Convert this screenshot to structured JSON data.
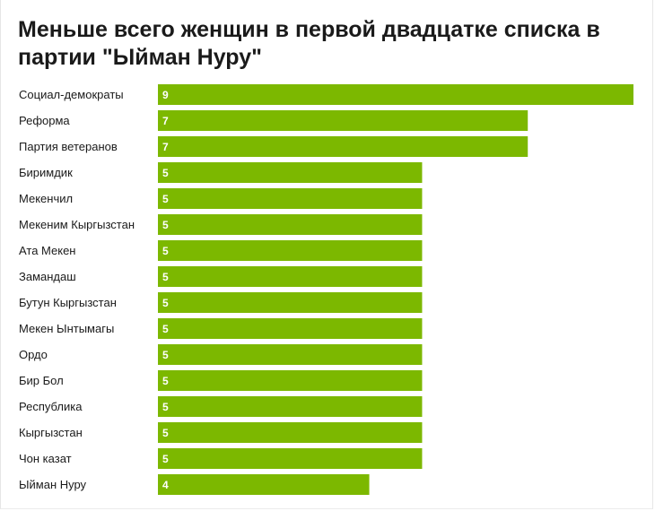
{
  "chart_data": {
    "type": "bar",
    "orientation": "horizontal",
    "title": "Меньше всего женщин в первой двадцатке списка в партии \"Ыйман Нуру\"",
    "categories": [
      "Социал-демократы",
      "Реформа",
      "Партия ветеранов",
      "Биримдик",
      "Мекенчил",
      "Мекеним Кыргызстан",
      "Ата Мекен",
      "Замандаш",
      "Бутун Кыргызстан",
      "Мекен Ынтымагы",
      "Ордо",
      "Бир Бол",
      "Республика",
      "Кыргызстан",
      "Чон казат",
      "Ыйман Нуру"
    ],
    "values": [
      9,
      7,
      7,
      5,
      5,
      5,
      5,
      5,
      5,
      5,
      5,
      5,
      5,
      5,
      5,
      4
    ],
    "xlim": [
      0,
      9
    ],
    "grid": false,
    "colors": {
      "bar": "#7cb800",
      "value_text": "#ffffff"
    }
  }
}
